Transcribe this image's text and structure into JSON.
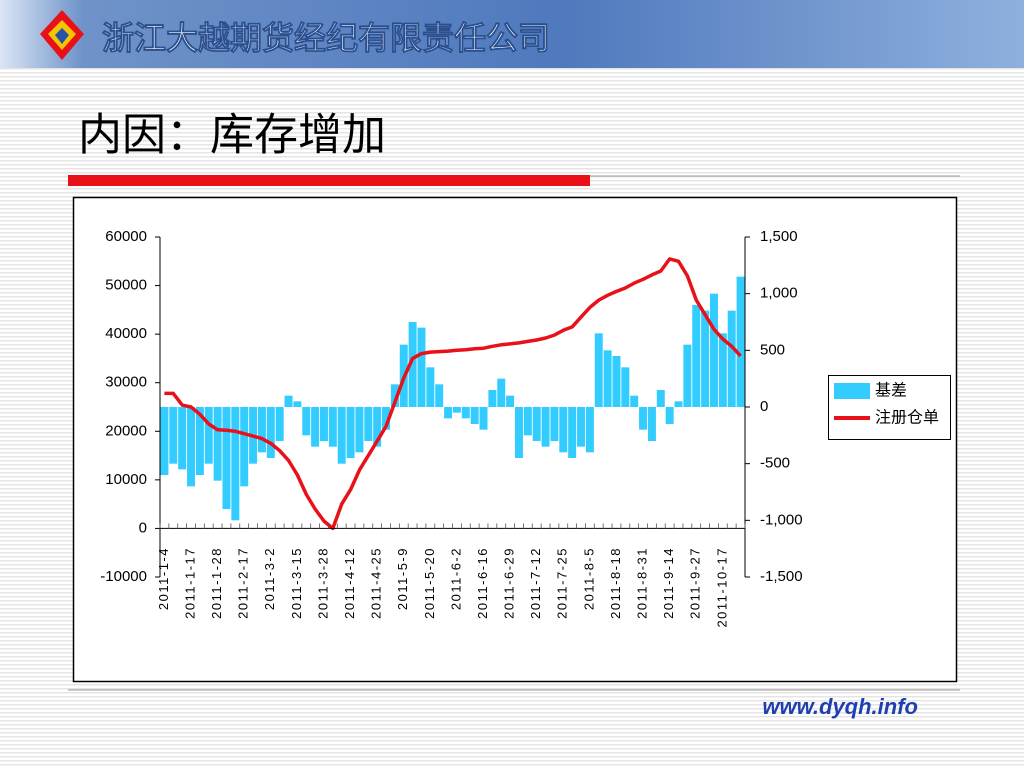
{
  "header": {
    "company": "浙江大越期货经纪有限责任公司"
  },
  "slide_title": "内因：库存增加",
  "footer_url": "www.dyqh.info",
  "chart_data": {
    "type": "combo",
    "categories": [
      "2011-1-4",
      null,
      null,
      "2011-1-17",
      null,
      null,
      "2011-1-28",
      null,
      null,
      "2011-2-17",
      null,
      null,
      "2011-3-2",
      null,
      null,
      "2011-3-15",
      null,
      null,
      "2011-3-28",
      null,
      null,
      "2011-4-12",
      null,
      null,
      "2011-4-25",
      null,
      null,
      "2011-5-9",
      null,
      null,
      "2011-5-20",
      null,
      null,
      "2011-6-2",
      null,
      null,
      "2011-6-16",
      null,
      null,
      "2011-6-29",
      null,
      null,
      "2011-7-12",
      null,
      null,
      "2011-7-25",
      null,
      null,
      "2011-8-5",
      null,
      null,
      "2011-8-18",
      null,
      null,
      "2011-8-31",
      null,
      null,
      "2011-9-14",
      null,
      null,
      "2011-9-27",
      null,
      null,
      "2011-10-17",
      null,
      null
    ],
    "series": [
      {
        "name": "基差",
        "type": "bar",
        "axis": "y2",
        "color": "#33ccff",
        "values": [
          -600,
          -500,
          -550,
          -700,
          -600,
          -500,
          -650,
          -900,
          -1000,
          -700,
          -500,
          -400,
          -450,
          -300,
          100,
          50,
          -250,
          -350,
          -300,
          -350,
          -500,
          -450,
          -400,
          -300,
          -350,
          -200,
          200,
          550,
          750,
          700,
          350,
          200,
          -100,
          -50,
          -100,
          -150,
          -200,
          150,
          250,
          100,
          -450,
          -250,
          -300,
          -350,
          -300,
          -400,
          -450,
          -350,
          -400,
          650,
          500,
          450,
          350,
          100,
          -200,
          -300,
          150,
          -150,
          50,
          550,
          900,
          850,
          1000,
          650,
          850,
          1150
        ]
      },
      {
        "name": "注册仓单",
        "type": "line",
        "color": "#e8111a",
        "values": [
          27800,
          27800,
          25400,
          25000,
          23500,
          21500,
          20300,
          20200,
          20000,
          19500,
          19000,
          18500,
          17500,
          16000,
          14000,
          11000,
          7000,
          4000,
          1500,
          0,
          5000,
          8000,
          12000,
          15000,
          18000,
          21000,
          26000,
          31000,
          35000,
          36000,
          36300,
          36400,
          36500,
          36700,
          36800,
          37000,
          37100,
          37500,
          37800,
          38000,
          38200,
          38500,
          38800,
          39200,
          39800,
          40800,
          41500,
          43500,
          45500,
          47000,
          48000,
          48800,
          49500,
          50500,
          51300,
          52200,
          53000,
          55500,
          55000,
          52000,
          47000,
          44000,
          41000,
          39000,
          37500,
          35500
        ]
      }
    ],
    "ylim": [
      -10000,
      60000
    ],
    "yticks": [
      -10000,
      0,
      10000,
      20000,
      30000,
      40000,
      50000,
      60000
    ],
    "y2lim": [
      -1500,
      1500
    ],
    "y2ticks": [
      {
        "value": -1500,
        "label": "-1,500"
      },
      {
        "value": -1000,
        "label": "-1,000"
      },
      -500,
      0,
      500,
      {
        "value": 1000,
        "label": "1,000"
      },
      {
        "value": 1500,
        "label": "1,500"
      }
    ],
    "legend": "right",
    "grid": false
  }
}
